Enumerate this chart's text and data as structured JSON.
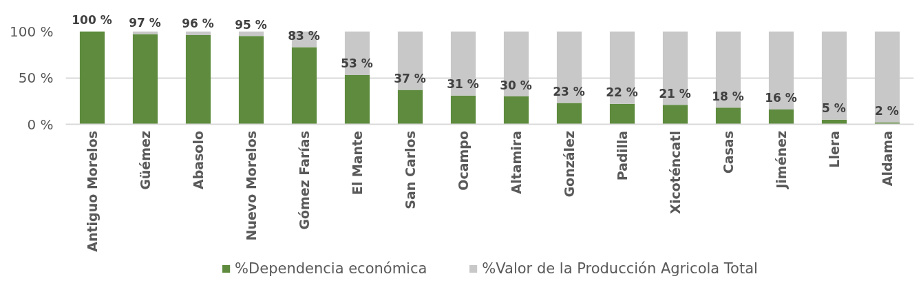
{
  "chart_data": {
    "type": "bar",
    "stacked": true,
    "grid": "y",
    "legend": "bottom",
    "categories": [
      "Antiguo Morelos",
      "Güémez",
      "Abasolo",
      "Nuevo Morelos",
      "Gómez Farías",
      "El Mante",
      "San Carlos",
      "Ocampo",
      "Altamira",
      "González",
      "Padilla",
      "Xicoténcatl",
      "Casas",
      "Jiménez",
      "Llera",
      "Aldama"
    ],
    "series": [
      {
        "name": "%Dependencia económica",
        "color": "#5e8b3e",
        "values": [
          100,
          97,
          96,
          95,
          83,
          53,
          37,
          31,
          30,
          23,
          22,
          21,
          18,
          16,
          5,
          2
        ],
        "value_labels": [
          "100 %",
          "97 %",
          "96 %",
          "95 %",
          "83 %",
          "53 %",
          "37 %",
          "31 %",
          "30 %",
          "23 %",
          "22 %",
          "21 %",
          "18 %",
          "16 %",
          "5 %",
          "2 %"
        ]
      },
      {
        "name": "%Valor de la Producción Agricola Total",
        "color": "#c8c8c8",
        "values": [
          0,
          3,
          4,
          5,
          17,
          47,
          63,
          69,
          70,
          77,
          78,
          79,
          82,
          84,
          95,
          98
        ]
      }
    ],
    "ylim": [
      0,
      100
    ],
    "yticks": [
      {
        "value": 0,
        "label": "0 %"
      },
      {
        "value": 50,
        "label": "50 %"
      },
      {
        "value": 100,
        "label": "100 %"
      }
    ]
  }
}
